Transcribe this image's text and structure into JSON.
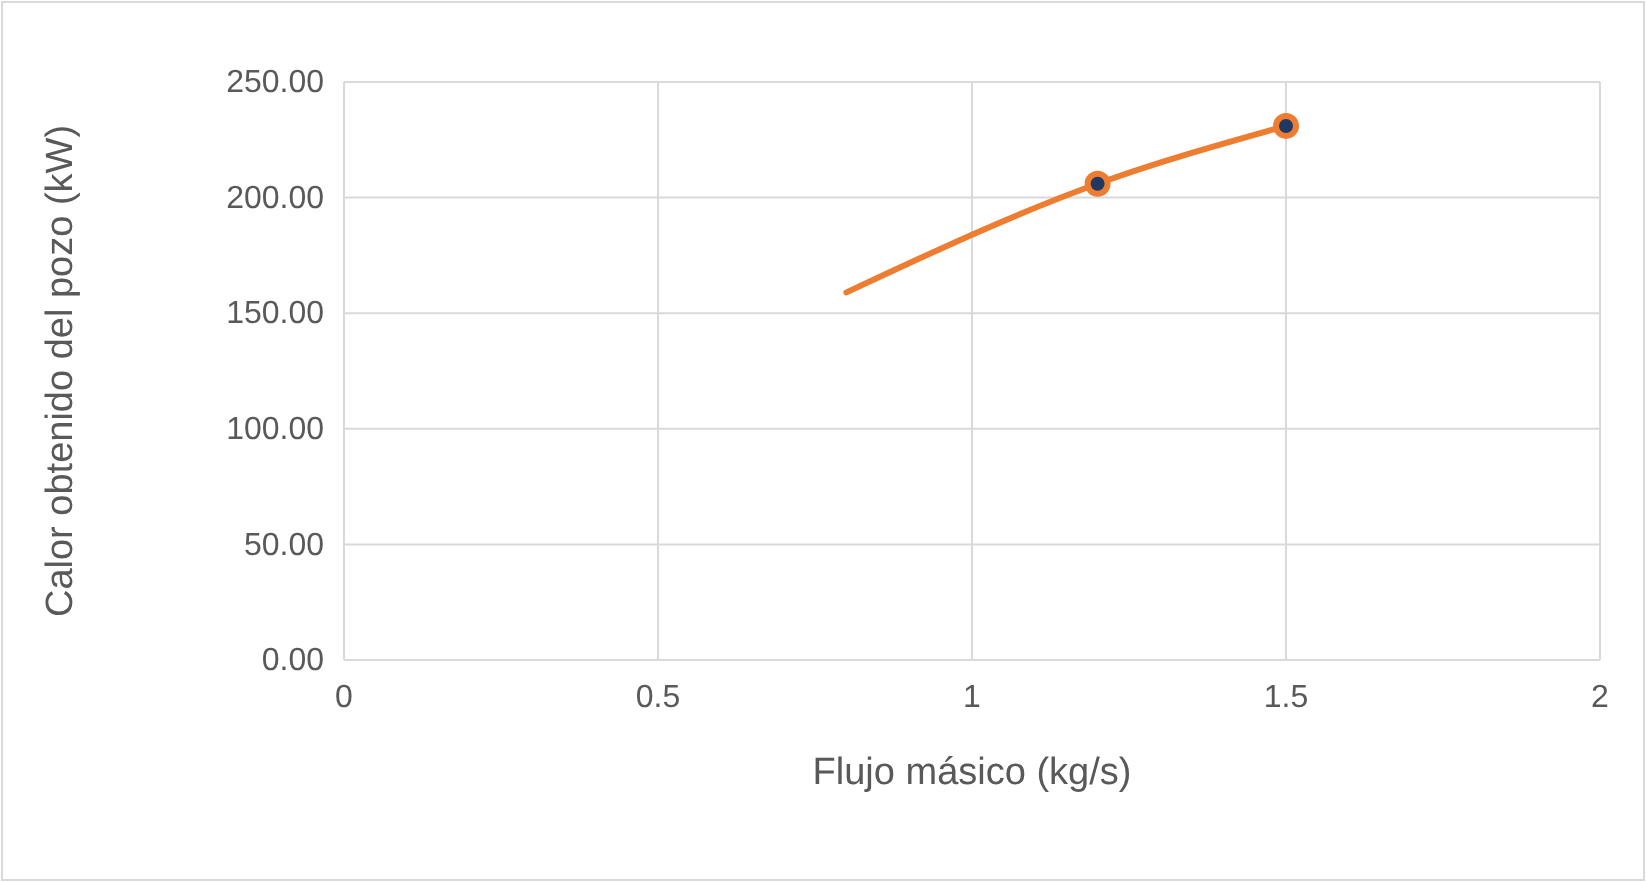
{
  "chart_data": {
    "type": "line",
    "xlabel": "Flujo másico (kg/s)",
    "ylabel": "Calor obtenido del pozo (kW)",
    "xlim": [
      0,
      2
    ],
    "xticks": [
      0,
      0.5,
      1,
      1.5,
      2
    ],
    "ylim": [
      0,
      250
    ],
    "yticks": [
      {
        "value": 0,
        "label": "0.00"
      },
      {
        "value": 50,
        "label": "50.00"
      },
      {
        "value": 100,
        "label": "100.00"
      },
      {
        "value": 150,
        "label": "150.00"
      },
      {
        "value": 200,
        "label": "200.00"
      },
      {
        "value": 250,
        "label": "250.00"
      }
    ],
    "grid": true,
    "series": [
      {
        "color": "#ed7d31",
        "marker": "none",
        "x": [
          0.8,
          1.2,
          1.5
        ],
        "values": [
          159,
          206,
          231
        ]
      },
      {
        "type": "scatter",
        "color": "#1f3864",
        "marker": "circle",
        "x": [
          1.2,
          1.5
        ],
        "values": [
          206,
          231
        ]
      }
    ]
  }
}
